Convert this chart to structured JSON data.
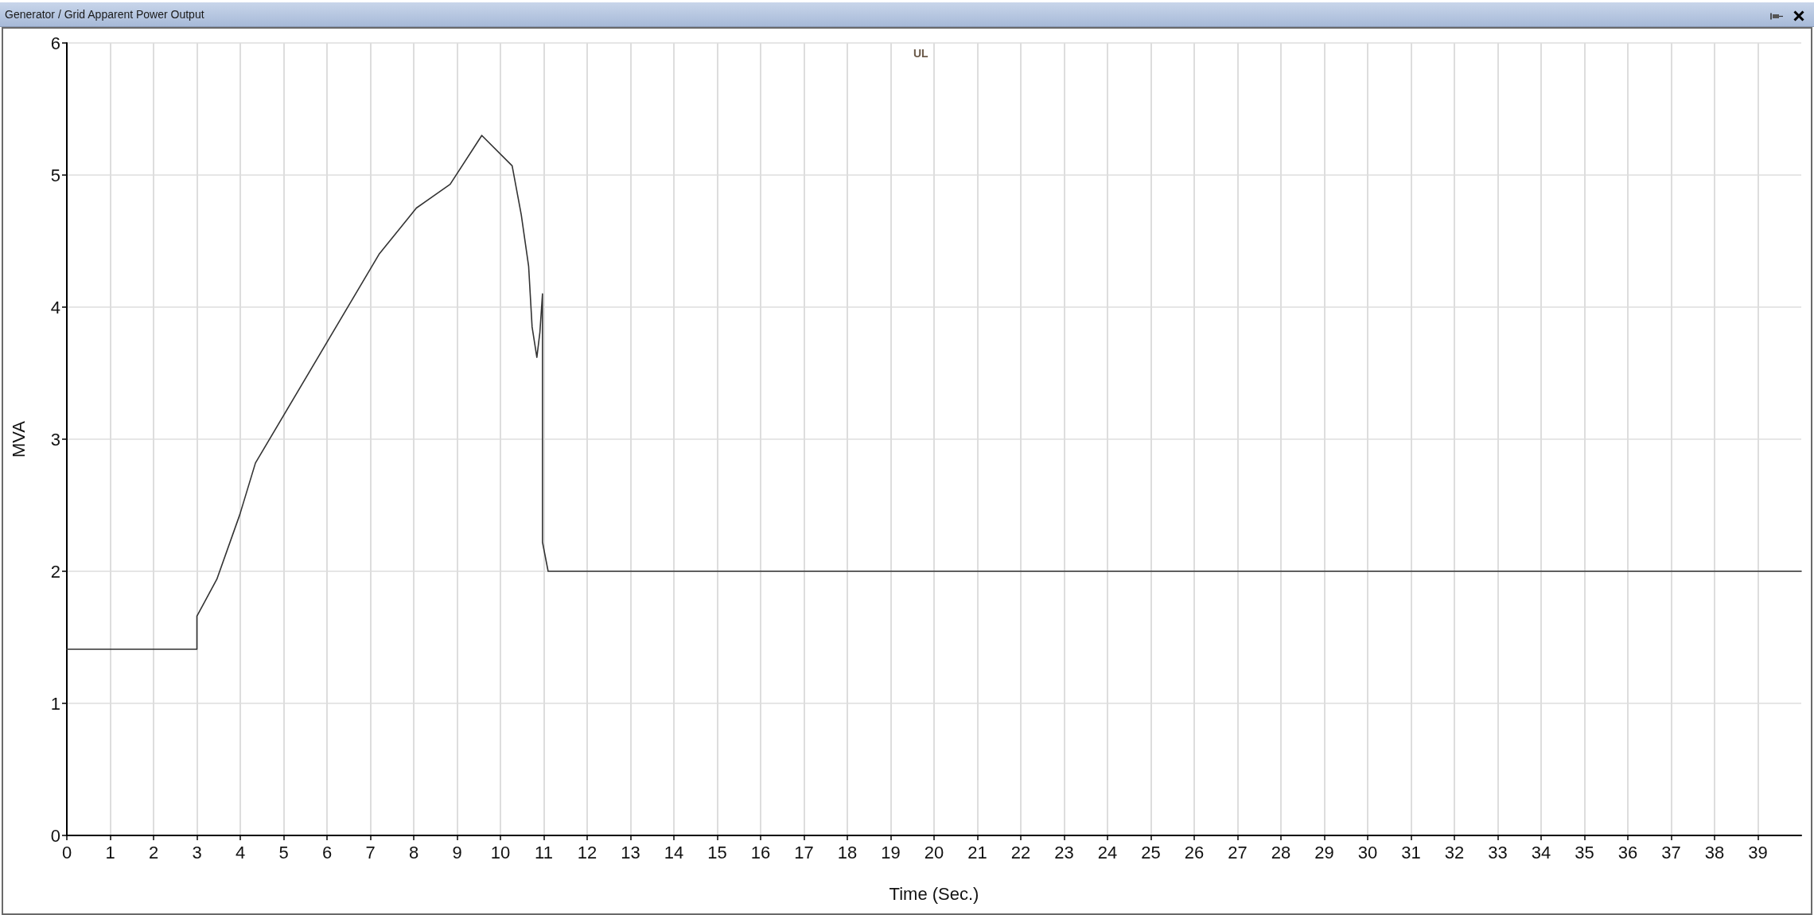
{
  "chart_data": {
    "type": "line",
    "title": "Generator / Grid Apparent Power Output",
    "xlabel": "Time (Sec.)",
    "ylabel": "MVA",
    "annotations": [
      "UL"
    ],
    "x": [
      0,
      3,
      3,
      3.46,
      3.99,
      4.35,
      7.2,
      8.06,
      8.84,
      9.57,
      10.27,
      10.48,
      10.65,
      10.73,
      10.84,
      10.91,
      10.97,
      10.97,
      11.1,
      40
    ],
    "values": [
      1.41,
      1.41,
      1.66,
      1.94,
      2.43,
      2.82,
      4.4,
      4.75,
      4.93,
      5.3,
      5.07,
      4.7,
      4.31,
      3.85,
      3.62,
      3.81,
      4.1,
      2.22,
      2.0,
      2.0
    ],
    "color": "#333333",
    "xlim": [
      0,
      40
    ],
    "xticks": [
      0,
      1,
      2,
      3,
      4,
      5,
      6,
      7,
      8,
      9,
      10,
      11,
      12,
      13,
      14,
      15,
      16,
      17,
      18,
      19,
      20,
      21,
      22,
      23,
      24,
      25,
      26,
      27,
      28,
      29,
      30,
      31,
      32,
      33,
      34,
      35,
      36,
      37,
      38,
      39
    ],
    "ylim": [
      0,
      6
    ],
    "yticks": [
      0,
      1,
      2,
      3,
      4,
      5,
      6
    ],
    "grid": true,
    "marker": "none",
    "line_style": "solid"
  }
}
